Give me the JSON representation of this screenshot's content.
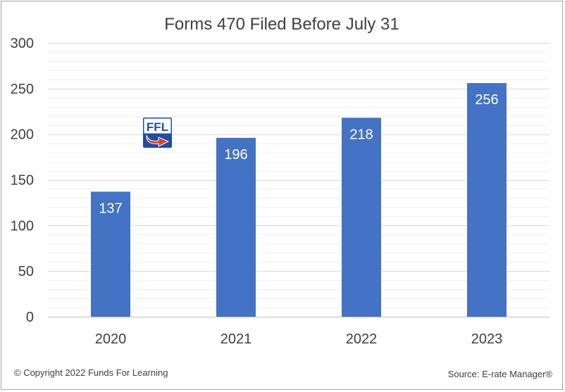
{
  "chart_data": {
    "type": "bar",
    "title": "Forms 470 Filed Before July 31",
    "xlabel": "",
    "ylabel": "",
    "categories": [
      "2020",
      "2021",
      "2022",
      "2023"
    ],
    "values": [
      137,
      196,
      218,
      256
    ],
    "data_labels": [
      "137",
      "196",
      "218",
      "256"
    ],
    "ylim": [
      0,
      300
    ],
    "yticks": [
      "0",
      "50",
      "100",
      "150",
      "200",
      "250",
      "300"
    ],
    "grid": true,
    "legend": "none",
    "bar_color": "#4472c4"
  },
  "footer": {
    "copyright": "© Copyright 2022 Funds For Learning",
    "source": "Source: E-rate Manager®"
  },
  "logo": {
    "text": "FFL",
    "icon": "ffl-logo-icon"
  }
}
